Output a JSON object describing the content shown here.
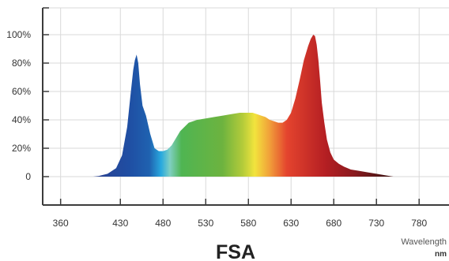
{
  "chart_data": {
    "type": "area",
    "title": "FSA",
    "xlabel": "Wavelength",
    "xunit": "nm",
    "ylabel": "",
    "grid": true,
    "xlim": [
      339,
      815
    ],
    "ylim": [
      0,
      100
    ],
    "x_ticks": [
      "360",
      "430",
      "480",
      "530",
      "580",
      "630",
      "680",
      "730",
      "780"
    ],
    "y_ticks": [
      "0",
      "20%",
      "40%",
      "60%",
      "80%",
      "100%"
    ],
    "series": [
      {
        "x": [
          398,
          405,
          415,
          425,
          432,
          438,
          442,
          445,
          447,
          449,
          451,
          453,
          456,
          460,
          465,
          470,
          475,
          480,
          485,
          490,
          495,
          500,
          510,
          520,
          530,
          540,
          550,
          560,
          570,
          580,
          585,
          590,
          595,
          600,
          605,
          610,
          615,
          620,
          625,
          630,
          635,
          640,
          645,
          650,
          653,
          656,
          658,
          660,
          662,
          664,
          666,
          669,
          672,
          676,
          680,
          686,
          692,
          700,
          710,
          720,
          730,
          740,
          745,
          750
        ],
        "y": [
          0,
          0.5,
          2,
          6,
          15,
          35,
          58,
          75,
          82,
          86,
          80,
          65,
          50,
          43,
          30,
          20,
          18,
          18,
          19,
          22,
          27,
          32,
          38,
          40,
          41,
          42,
          43,
          44,
          45,
          45,
          45,
          44,
          43,
          42,
          40,
          39,
          38,
          38,
          40,
          45,
          55,
          68,
          82,
          92,
          97,
          100,
          99,
          93,
          82,
          68,
          52,
          38,
          26,
          17,
          12,
          9,
          7,
          5,
          4,
          3,
          2,
          1,
          0.5,
          0
        ]
      }
    ]
  }
}
